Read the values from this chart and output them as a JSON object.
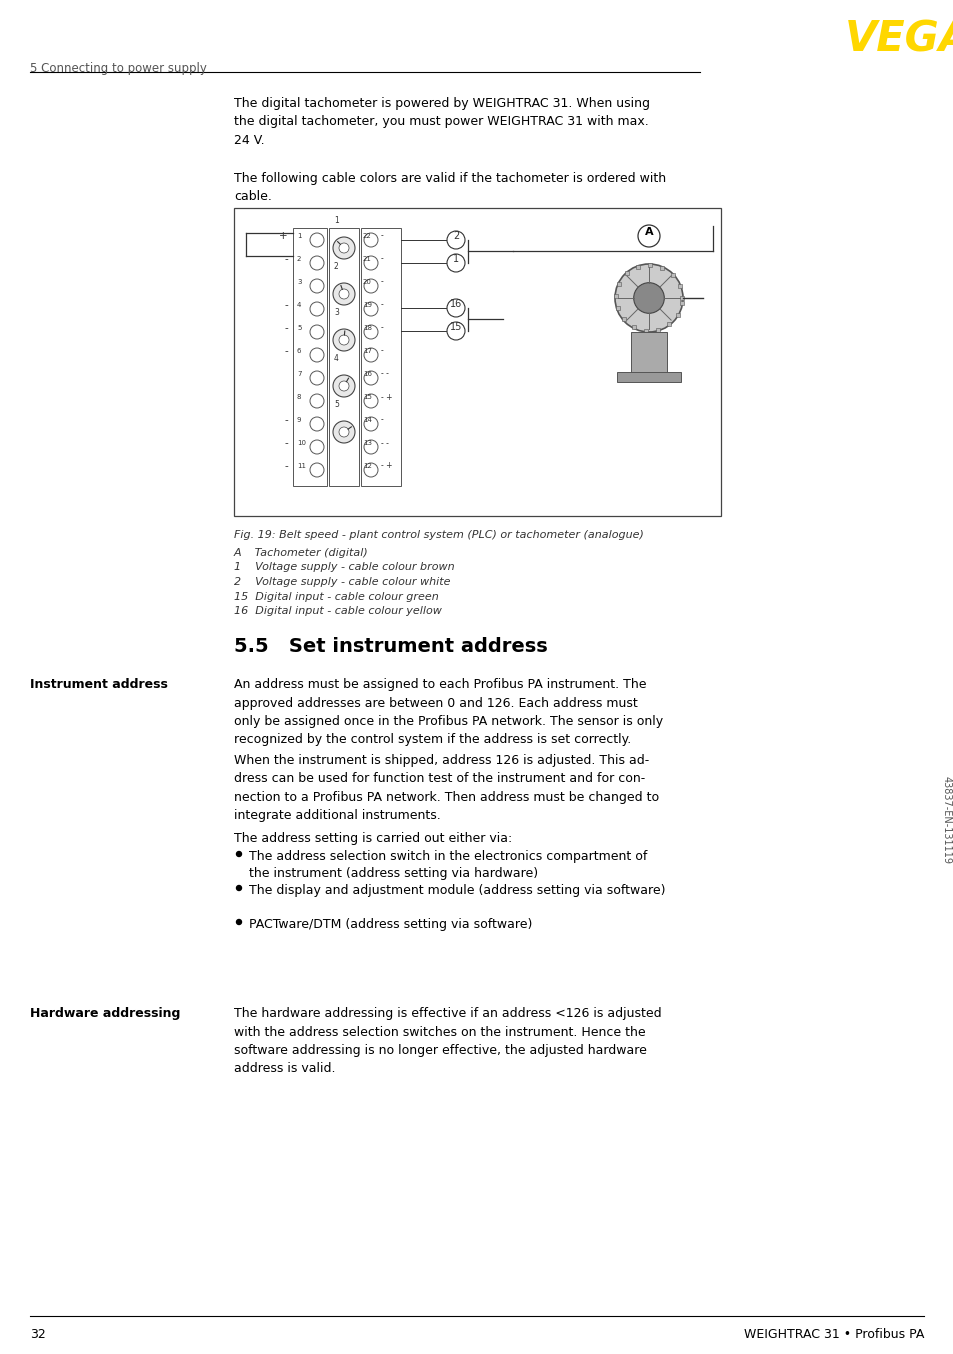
{
  "page_number": "32",
  "footer_text": "WEIGHTRAC 31 • Profibus PA",
  "header_section": "5 Connecting to power supply",
  "logo_text": "VEGA",
  "logo_color": "#FFD700",
  "intro_text_1": "The digital tachometer is powered by WEIGHTRAC 31. When using\nthe digital tachometer, you must power WEIGHTRAC 31 with max.\n24 V.",
  "intro_text_2": "The following cable colors are valid if the tachometer is ordered with\ncable.",
  "fig_caption": "Fig. 19: Belt speed - plant control system (PLC) or tachometer (analogue)",
  "fig_labels": [
    "A    Tachometer (digital)",
    "1    Voltage supply - cable colour brown",
    "2    Voltage supply - cable colour white",
    "15  Digital input - cable colour green",
    "16  Digital input - cable colour yellow"
  ],
  "section_title": "5.5   Set instrument address",
  "section_label_1": "Instrument address",
  "section_text_1": "An address must be assigned to each Profibus PA instrument. The\napproved addresses are between 0 and 126. Each address must\nonly be assigned once in the Profibus PA network. The sensor is only\nrecognized by the control system if the address is set correctly.",
  "section_text_2": "When the instrument is shipped, address 126 is adjusted. This ad-\ndress can be used for function test of the instrument and for con-\nnection to a Profibus PA network. Then address must be changed to\nintegrate additional instruments.",
  "section_text_3": "The address setting is carried out either via:",
  "bullet_points": [
    "The address selection switch in the electronics compartment of\nthe instrument (address setting via hardware)",
    "The display and adjustment module (address setting via software)",
    "PACTware/DTM (address setting via software)"
  ],
  "section_label_2": "Hardware addressing",
  "section_text_4": "The hardware addressing is effective if an address <126 is adjusted\nwith the address selection switches on the instrument. Hence the\nsoftware addressing is no longer effective, the adjusted hardware\naddress is valid.",
  "sidebar_text": "43837-EN-131119",
  "bg_color": "#ffffff",
  "text_color": "#000000"
}
